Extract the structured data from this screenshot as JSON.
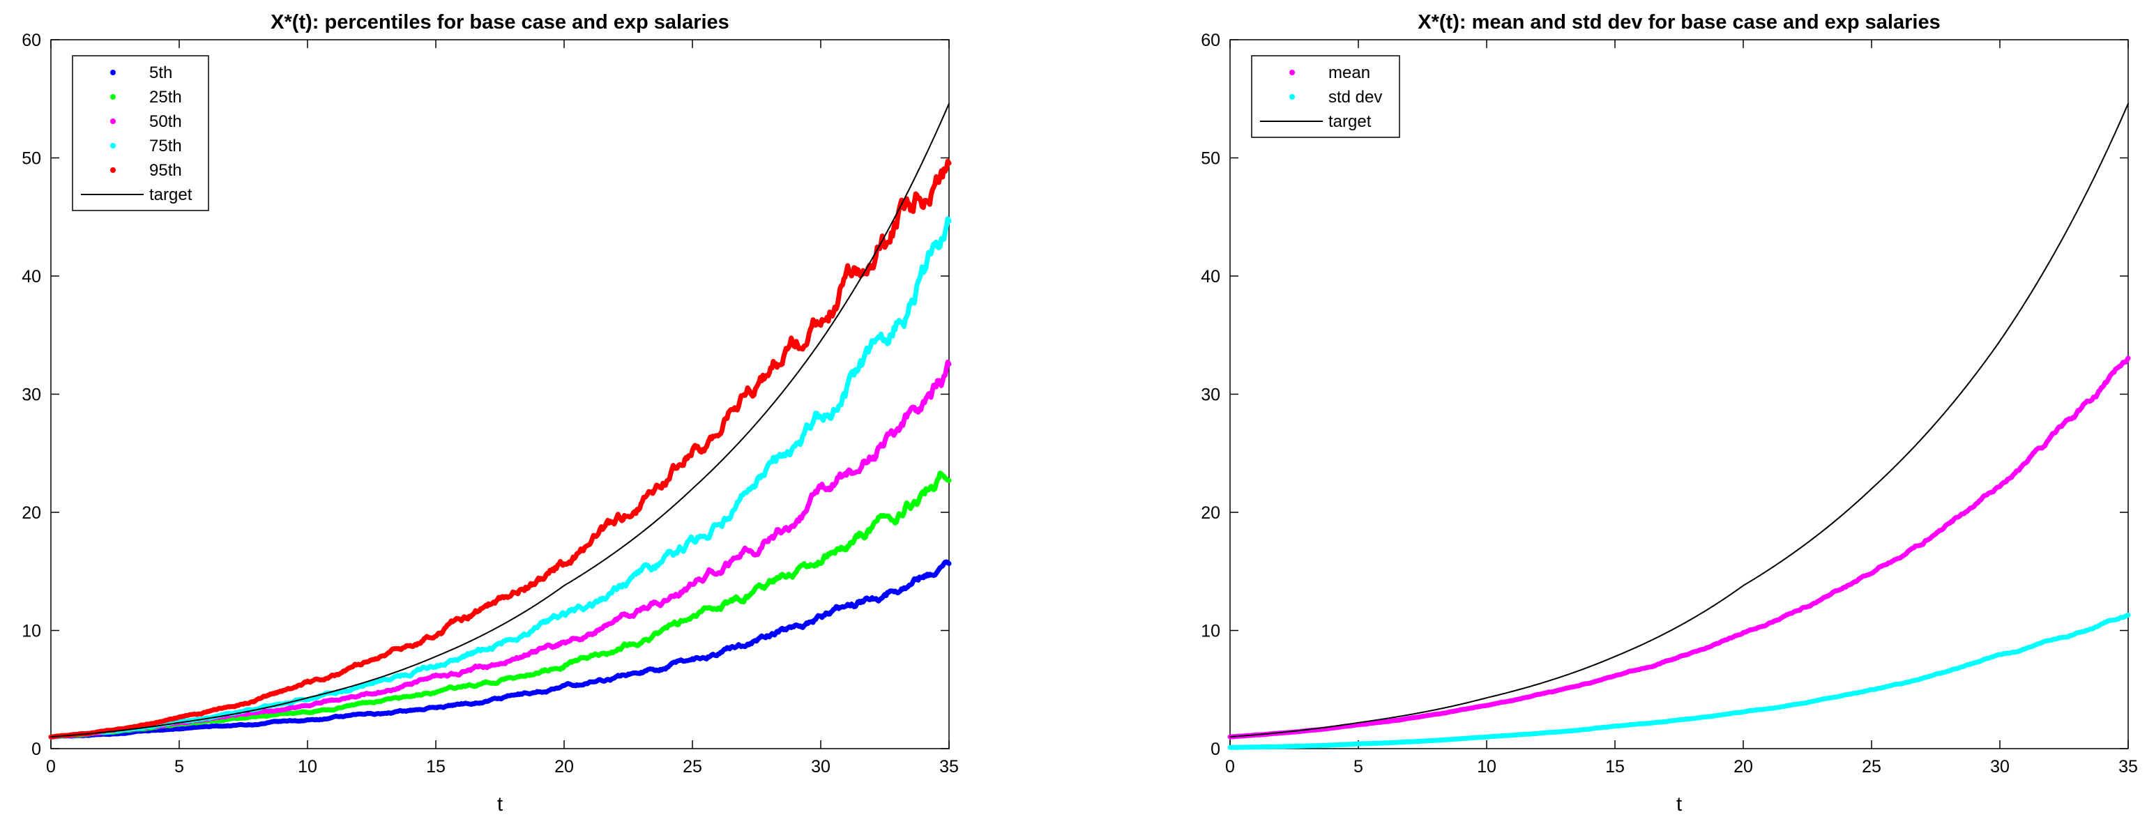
{
  "chart_data": [
    {
      "type": "line",
      "title": "X*(t): percentiles for base case and exp salaries",
      "xlabel": "t",
      "ylabel": "",
      "xlim": [
        0,
        35
      ],
      "ylim": [
        0,
        60
      ],
      "xticks": [
        "0",
        "5",
        "10",
        "15",
        "20",
        "25",
        "30",
        "35"
      ],
      "yticks": [
        "0",
        "10",
        "20",
        "30",
        "40",
        "50",
        "60"
      ],
      "legend_position": "top-left",
      "x": [
        0,
        5,
        10,
        15,
        20,
        25,
        30,
        35
      ],
      "series": [
        {
          "name": "5th",
          "color": "#0000ff",
          "style": "marker",
          "values": [
            1.0,
            1.7,
            2.4,
            3.5,
            5.2,
            7.6,
            11.2,
            15.8
          ]
        },
        {
          "name": "25th",
          "color": "#00ff00",
          "style": "marker",
          "values": [
            1.0,
            2.0,
            3.2,
            4.8,
            7.1,
            11.1,
            16.2,
            23.8
          ]
        },
        {
          "name": "50th",
          "color": "#ff00ff",
          "style": "marker",
          "values": [
            1.0,
            2.2,
            3.7,
            5.9,
            8.9,
            13.9,
            21.4,
            31.8
          ]
        },
        {
          "name": "75th",
          "color": "#00ffff",
          "style": "marker",
          "values": [
            1.0,
            2.3,
            4.3,
            7.2,
            11.1,
            17.4,
            27.8,
            43.8
          ]
        },
        {
          "name": "95th",
          "color": "#ff0000",
          "style": "marker",
          "values": [
            1.0,
            2.6,
            5.6,
            9.9,
            15.8,
            25.3,
            37.5,
            50.3
          ]
        },
        {
          "name": "target",
          "color": "#000000",
          "style": "line",
          "values": [
            1.0,
            2.2,
            4.3,
            7.8,
            13.8,
            22.0,
            34.5,
            54.6
          ]
        }
      ]
    },
    {
      "type": "line",
      "title": "X*(t): mean and std dev for base case and exp salaries",
      "xlabel": "t",
      "ylabel": "",
      "xlim": [
        0,
        35
      ],
      "ylim": [
        0,
        60
      ],
      "xticks": [
        "0",
        "5",
        "10",
        "15",
        "20",
        "25",
        "30",
        "35"
      ],
      "yticks": [
        "0",
        "10",
        "20",
        "30",
        "40",
        "50",
        "60"
      ],
      "legend_position": "top-left",
      "x": [
        0,
        5,
        10,
        15,
        20,
        25,
        30,
        35
      ],
      "series": [
        {
          "name": "mean",
          "color": "#ff00ff",
          "style": "marker",
          "values": [
            1.0,
            2.0,
            3.7,
            6.2,
            9.8,
            15.0,
            22.5,
            33.2
          ]
        },
        {
          "name": "std dev",
          "color": "#00ffff",
          "style": "marker",
          "values": [
            0.1,
            0.4,
            1.0,
            1.9,
            3.1,
            5.0,
            7.9,
            11.3
          ]
        },
        {
          "name": "target",
          "color": "#000000",
          "style": "line",
          "values": [
            1.0,
            2.2,
            4.3,
            7.8,
            13.8,
            22.0,
            34.5,
            54.6
          ]
        }
      ]
    }
  ]
}
